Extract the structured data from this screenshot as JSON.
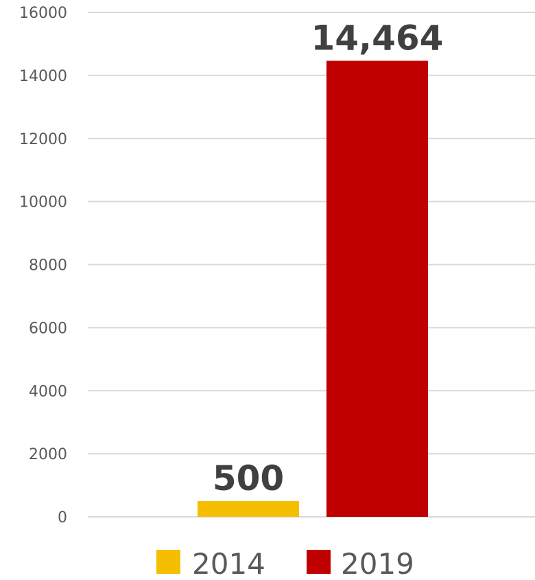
{
  "chart_data": {
    "type": "bar",
    "title": "",
    "xlabel": "",
    "ylabel": "",
    "ylim": [
      0,
      16000
    ],
    "yticks": [
      0,
      2000,
      4000,
      6000,
      8000,
      10000,
      12000,
      14000,
      16000
    ],
    "ytick_labels": [
      "0",
      "2000",
      "4000",
      "6000",
      "8000",
      "10000",
      "12000",
      "14000",
      "16000"
    ],
    "grid": true,
    "legend_position": "bottom",
    "series": [
      {
        "name": "2014",
        "value": 500,
        "data_label": "500",
        "color": "#F5BE00"
      },
      {
        "name": "2019",
        "value": 14464,
        "data_label": "14,464",
        "color": "#C00000"
      }
    ]
  }
}
